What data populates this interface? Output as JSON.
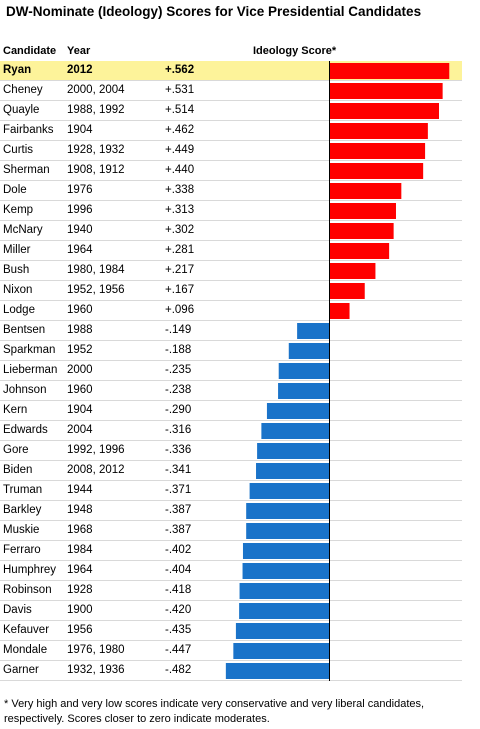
{
  "title": "DW-Nominate (Ideology) Scores for Vice Presidential Candidates",
  "header": {
    "candidate": "Candidate",
    "year": "Year",
    "score": "Ideology Score*"
  },
  "footnote": "* Very high and very low scores indicate very conservative and very liberal candidates, respectively. Scores closer to zero indicate moderates.",
  "colors": {
    "positive": "#ff0000",
    "negative": "#1a73c9",
    "highlight": "#fdf39a"
  },
  "chart_data": {
    "type": "bar",
    "orientation": "horizontal",
    "xlim": [
      -0.5,
      0.6
    ],
    "rows": [
      {
        "candidate": "Ryan",
        "year": "2012",
        "label": "+.562",
        "value": 0.562,
        "highlight": true
      },
      {
        "candidate": "Cheney",
        "year": "2000, 2004",
        "label": "+.531",
        "value": 0.531
      },
      {
        "candidate": "Quayle",
        "year": "1988, 1992",
        "label": "+.514",
        "value": 0.514
      },
      {
        "candidate": "Fairbanks",
        "year": "1904",
        "label": "+.462",
        "value": 0.462
      },
      {
        "candidate": "Curtis",
        "year": "1928, 1932",
        "label": "+.449",
        "value": 0.449
      },
      {
        "candidate": "Sherman",
        "year": "1908, 1912",
        "label": "+.440",
        "value": 0.44
      },
      {
        "candidate": "Dole",
        "year": "1976",
        "label": "+.338",
        "value": 0.338
      },
      {
        "candidate": "Kemp",
        "year": "1996",
        "label": "+.313",
        "value": 0.313
      },
      {
        "candidate": "McNary",
        "year": "1940",
        "label": "+.302",
        "value": 0.302
      },
      {
        "candidate": "Miller",
        "year": "1964",
        "label": "+.281",
        "value": 0.281
      },
      {
        "candidate": "Bush",
        "year": "1980, 1984",
        "label": "+.217",
        "value": 0.217
      },
      {
        "candidate": "Nixon",
        "year": "1952, 1956",
        "label": "+.167",
        "value": 0.167
      },
      {
        "candidate": "Lodge",
        "year": "1960",
        "label": "+.096",
        "value": 0.096
      },
      {
        "candidate": "Bentsen",
        "year": "1988",
        "label": "-.149",
        "value": -0.149
      },
      {
        "candidate": "Sparkman",
        "year": "1952",
        "label": "-.188",
        "value": -0.188
      },
      {
        "candidate": "Lieberman",
        "year": "2000",
        "label": "-.235",
        "value": -0.235
      },
      {
        "candidate": "Johnson",
        "year": "1960",
        "label": "-.238",
        "value": -0.238
      },
      {
        "candidate": "Kern",
        "year": "1904",
        "label": "-.290",
        "value": -0.29
      },
      {
        "candidate": "Edwards",
        "year": "2004",
        "label": "-.316",
        "value": -0.316
      },
      {
        "candidate": "Gore",
        "year": "1992, 1996",
        "label": "-.336",
        "value": -0.336
      },
      {
        "candidate": "Biden",
        "year": "2008, 2012",
        "label": "-.341",
        "value": -0.341
      },
      {
        "candidate": "Truman",
        "year": "1944",
        "label": "-.371",
        "value": -0.371
      },
      {
        "candidate": "Barkley",
        "year": "1948",
        "label": "-.387",
        "value": -0.387
      },
      {
        "candidate": "Muskie",
        "year": "1968",
        "label": "-.387",
        "value": -0.387
      },
      {
        "candidate": "Ferraro",
        "year": "1984",
        "label": "-.402",
        "value": -0.402
      },
      {
        "candidate": "Humphrey",
        "year": "1964",
        "label": "-.404",
        "value": -0.404
      },
      {
        "candidate": "Robinson",
        "year": "1928",
        "label": "-.418",
        "value": -0.418
      },
      {
        "candidate": "Davis",
        "year": "1900",
        "label": "-.420",
        "value": -0.42
      },
      {
        "candidate": "Kefauver",
        "year": "1956",
        "label": "-.435",
        "value": -0.435
      },
      {
        "candidate": "Mondale",
        "year": "1976, 1980",
        "label": "-.447",
        "value": -0.447
      },
      {
        "candidate": "Garner",
        "year": "1932, 1936",
        "label": "-.482",
        "value": -0.482
      }
    ]
  }
}
